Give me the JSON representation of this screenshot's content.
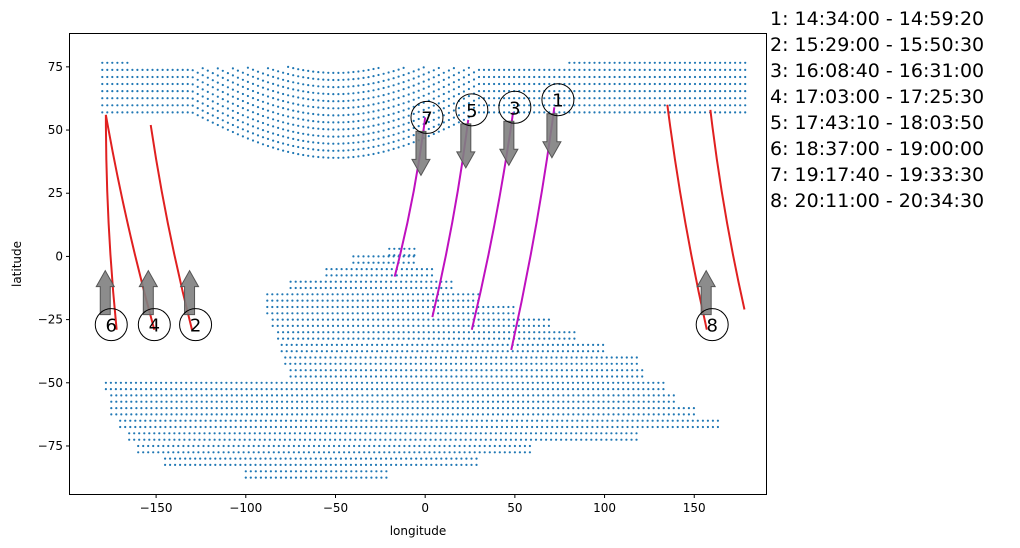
{
  "chart_data": {
    "type": "scatter",
    "xlabel": "longitude",
    "ylabel": "latitude",
    "xlim": [
      -198,
      190
    ],
    "ylim": [
      -94,
      88
    ],
    "xticks": [
      -150,
      -100,
      -50,
      0,
      50,
      100,
      150
    ],
    "yticks": [
      75,
      50,
      25,
      0,
      -25,
      -50,
      -75
    ],
    "colors": {
      "ground_points": "#1f77b4",
      "ascending_track": "#e02020",
      "descending_track": "#bf10bf",
      "arrow_fill": "#808080",
      "arrow_edge": "#555555"
    },
    "ground_coverage": {
      "description_units": "lat/lon grid dots",
      "north_band": {
        "lat_top_west": 77,
        "lat_top_east": 79,
        "lat_bottom": 57,
        "lon_min": -180,
        "lon_max": 180
      },
      "south_body_rows": [
        {
          "lat": 3,
          "lon_min": -20,
          "lon_max": -5
        },
        {
          "lat": 0,
          "lon_min": -40,
          "lon_max": -5
        },
        {
          "lat": -5,
          "lon_min": -55,
          "lon_max": 5
        },
        {
          "lat": -10,
          "lon_min": -75,
          "lon_max": 15
        },
        {
          "lat": -15,
          "lon_min": -88,
          "lon_max": 30
        },
        {
          "lat": -20,
          "lon_min": -88,
          "lon_max": 50
        },
        {
          "lat": -25,
          "lon_min": -85,
          "lon_max": 70
        },
        {
          "lat": -30,
          "lon_min": -82,
          "lon_max": 85
        },
        {
          "lat": -35,
          "lon_min": -80,
          "lon_max": 100
        },
        {
          "lat": -40,
          "lon_min": -78,
          "lon_max": 120
        },
        {
          "lat": -45,
          "lon_min": -75,
          "lon_max": 122
        },
        {
          "lat": -50,
          "lon_min": -178,
          "lon_max": 135
        },
        {
          "lat": -55,
          "lon_min": -175,
          "lon_max": 140
        },
        {
          "lat": -60,
          "lon_min": -175,
          "lon_max": 150
        },
        {
          "lat": -65,
          "lon_min": -170,
          "lon_max": 165
        },
        {
          "lat": -70,
          "lon_min": -165,
          "lon_max": 120
        },
        {
          "lat": -75,
          "lon_min": -160,
          "lon_max": 60
        },
        {
          "lat": -80,
          "lon_min": -145,
          "lon_max": 30
        },
        {
          "lat": -85,
          "lon_min": -100,
          "lon_max": -20
        }
      ]
    },
    "tracks": [
      {
        "id": "1",
        "kind": "descending",
        "start": [
          72,
          59
        ],
        "end": [
          48,
          -37
        ],
        "label_pos": [
          74,
          62
        ],
        "arrow": "down"
      },
      {
        "id": "2",
        "kind": "ascending",
        "start": [
          -153,
          52
        ],
        "end": [
          -130,
          -29
        ],
        "label_pos": [
          -128,
          -27
        ],
        "arrow": "up"
      },
      {
        "id": "3",
        "kind": "descending",
        "start": [
          49,
          57
        ],
        "end": [
          26,
          -29
        ],
        "label_pos": [
          50,
          59
        ],
        "arrow": "down"
      },
      {
        "id": "4",
        "kind": "ascending",
        "start": [
          -178,
          56
        ],
        "end": [
          -151,
          -29
        ],
        "label_pos": [
          -151,
          -27
        ],
        "arrow": "up"
      },
      {
        "id": "5",
        "kind": "descending",
        "start": [
          24,
          54
        ],
        "end": [
          4,
          -24
        ],
        "label_pos": [
          26,
          58
        ],
        "arrow": "down"
      },
      {
        "id": "6",
        "kind": "ascending",
        "start": [
          -178,
          56
        ],
        "end": [
          -172,
          -29
        ],
        "label_pos": [
          -175,
          -27
        ],
        "arrow": "up"
      },
      {
        "id": "7",
        "kind": "descending",
        "start": [
          0,
          55
        ],
        "end": [
          -17,
          -8
        ],
        "label_pos": [
          1,
          55
        ],
        "arrow": "down"
      },
      {
        "id": "8",
        "kind": "ascending",
        "start": [
          135,
          60
        ],
        "end": [
          157,
          -29
        ],
        "label_pos": [
          160,
          -27
        ],
        "arrow": "up"
      },
      {
        "id": "8b",
        "kind": "ascending",
        "start": [
          159,
          58
        ],
        "end": [
          178,
          -21
        ],
        "label_pos": null,
        "arrow": null
      }
    ],
    "legend": [
      "1:  14:34:00 - 14:59:20",
      "2:  15:29:00 - 15:50:30",
      "3:  16:08:40 - 16:31:00",
      "4:  17:03:00 - 17:25:30",
      "5:  17:43:10 - 18:03:50",
      "6:  18:37:00 - 19:00:00",
      "7:  19:17:40 - 19:33:30",
      "8:  20:11:00 - 20:34:30"
    ],
    "legend_placement": "right-outside"
  }
}
